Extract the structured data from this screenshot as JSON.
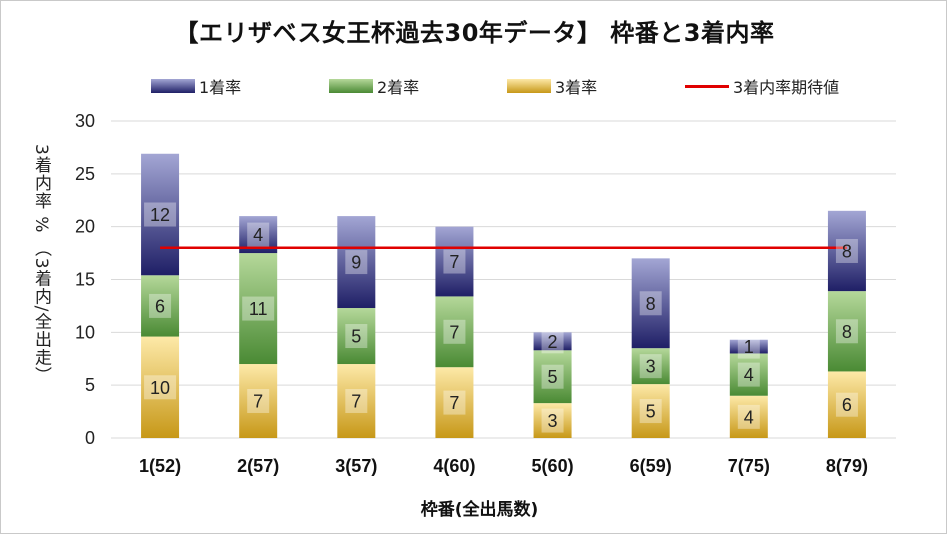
{
  "chart_data": {
    "type": "bar",
    "stacked": true,
    "title": "【エリザベス女王杯過去30年データ】 枠番と3着内率",
    "xlabel": "枠番(全出馬数)",
    "ylabel": "3着内率 % （3着内/全出走）",
    "ylim": [
      0,
      30
    ],
    "yticks": [
      0,
      5,
      10,
      15,
      20,
      25,
      30
    ],
    "categories": [
      "1(52)",
      "2(57)",
      "3(57)",
      "4(60)",
      "5(60)",
      "6(59)",
      "7(75)",
      "8(79)"
    ],
    "series": [
      {
        "name": "3着率",
        "counts": [
          10,
          7,
          7,
          7,
          3,
          5,
          4,
          6
        ],
        "values": [
          9.6,
          7.0,
          7.0,
          6.7,
          3.3,
          5.1,
          4.0,
          6.3
        ]
      },
      {
        "name": "2着率",
        "counts": [
          6,
          11,
          5,
          7,
          5,
          3,
          4,
          8
        ],
        "values": [
          5.8,
          10.5,
          5.3,
          6.7,
          5.0,
          3.4,
          4.0,
          7.6
        ]
      },
      {
        "name": "1着率",
        "counts": [
          12,
          4,
          9,
          7,
          2,
          8,
          1,
          8
        ],
        "values": [
          11.5,
          3.5,
          8.7,
          6.6,
          1.7,
          8.5,
          1.3,
          7.6
        ]
      }
    ],
    "expected_line": {
      "name": "3着内率期待値",
      "value": 18.0
    },
    "legend": [
      "1着率",
      "2着率",
      "3着率",
      "3着内率期待値"
    ]
  },
  "colors": {
    "first_top": "#a3a6d4",
    "first_bottom": "#1f1f66",
    "second_top": "#b5d89a",
    "second_bottom": "#4a8a34",
    "third_top": "#fde9a8",
    "third_bottom": "#c79818",
    "expected_line": "#e00000",
    "grid": "#d9d9d9"
  }
}
